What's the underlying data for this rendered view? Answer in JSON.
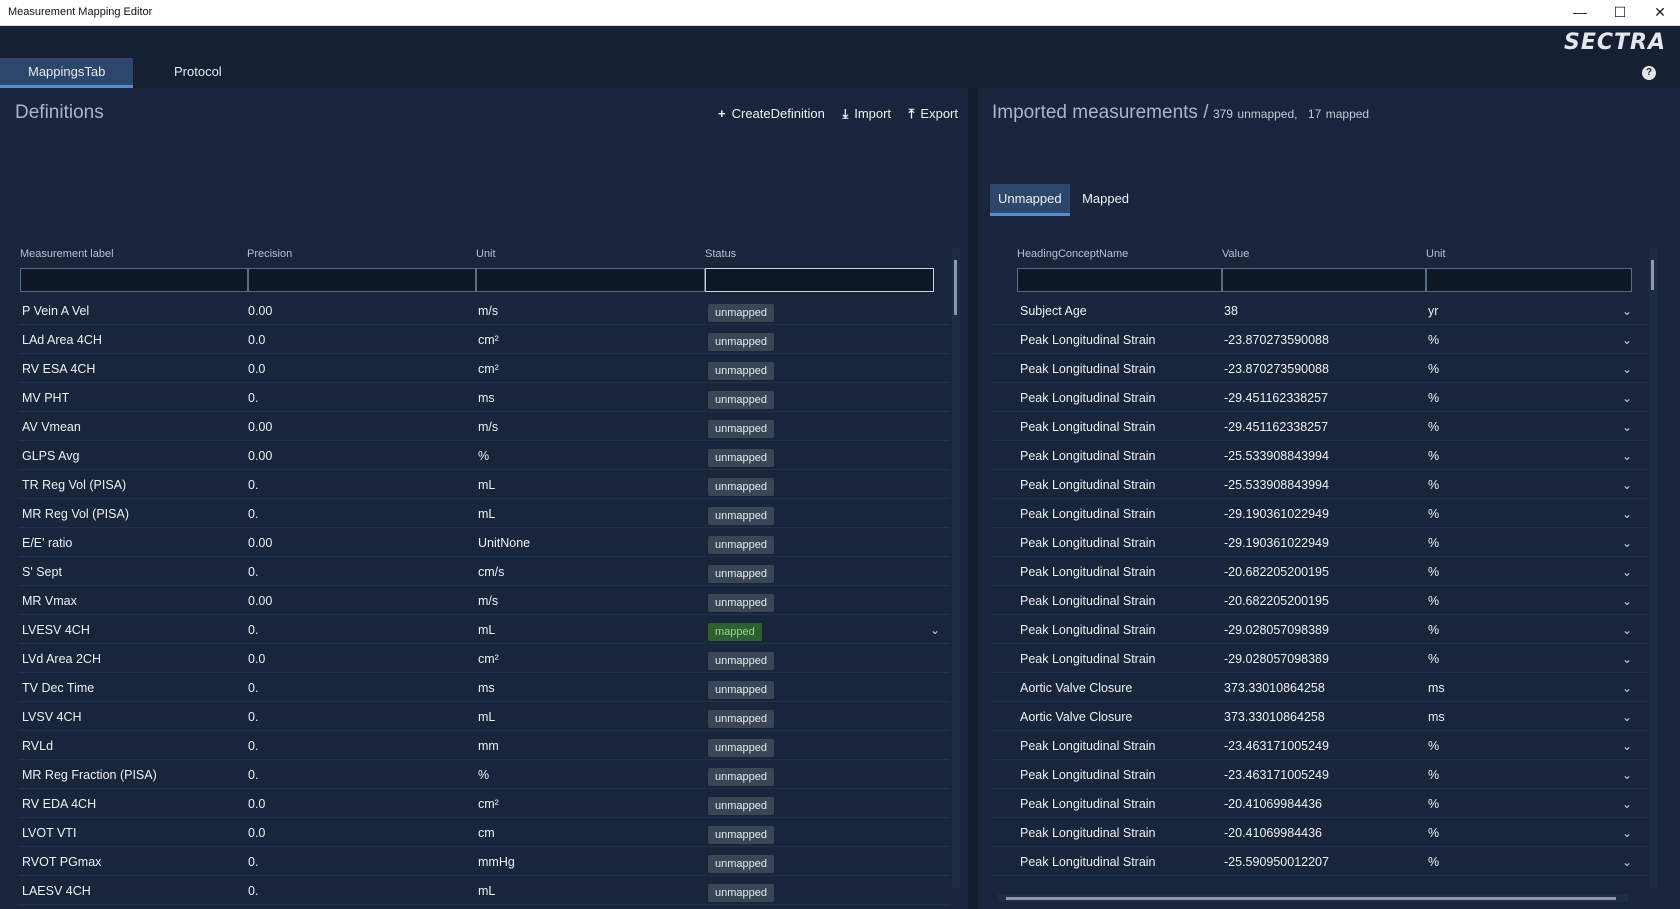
{
  "window": {
    "title": "Measurement Mapping Editor",
    "minimize": "—",
    "maximize": "☐",
    "close": "✕"
  },
  "brand": {
    "logo": "SECTRA",
    "help": "?"
  },
  "tabs": [
    {
      "label": "MappingsTab"
    },
    {
      "label": "Protocol"
    }
  ],
  "definitions": {
    "title": "Definitions",
    "actions": {
      "create": "CreateDefinition",
      "import": "Import",
      "export": "Export"
    },
    "columns": {
      "label": "Measurement label",
      "precision": "Precision",
      "unit": "Unit",
      "status": "Status"
    },
    "rows": [
      {
        "label": "P Vein A Vel",
        "precision": "0.00",
        "unit": "m/s",
        "status": "unmapped"
      },
      {
        "label": "LAd Area 4CH",
        "precision": "0.0",
        "unit": "cm²",
        "status": "unmapped"
      },
      {
        "label": "RV ESA 4CH",
        "precision": "0.0",
        "unit": "cm²",
        "status": "unmapped"
      },
      {
        "label": "MV PHT",
        "precision": "0.",
        "unit": "ms",
        "status": "unmapped"
      },
      {
        "label": "AV Vmean",
        "precision": "0.00",
        "unit": "m/s",
        "status": "unmapped"
      },
      {
        "label": "GLPS Avg",
        "precision": "0.00",
        "unit": "%",
        "status": "unmapped"
      },
      {
        "label": "TR Reg Vol (PISA)",
        "precision": "0.",
        "unit": "mL",
        "status": "unmapped"
      },
      {
        "label": "MR Reg Vol (PISA)",
        "precision": "0.",
        "unit": "mL",
        "status": "unmapped"
      },
      {
        "label": "E/E' ratio",
        "precision": "0.00",
        "unit": "UnitNone",
        "status": "unmapped"
      },
      {
        "label": "S' Sept",
        "precision": "0.",
        "unit": "cm/s",
        "status": "unmapped"
      },
      {
        "label": "MR Vmax",
        "precision": "0.00",
        "unit": "m/s",
        "status": "unmapped"
      },
      {
        "label": "LVESV 4CH",
        "precision": "0.",
        "unit": "mL",
        "status": "mapped"
      },
      {
        "label": "LVd Area 2CH",
        "precision": "0.0",
        "unit": "cm²",
        "status": "unmapped"
      },
      {
        "label": "TV Dec Time",
        "precision": "0.",
        "unit": "ms",
        "status": "unmapped"
      },
      {
        "label": "LVSV 4CH",
        "precision": "0.",
        "unit": "mL",
        "status": "unmapped"
      },
      {
        "label": "RVLd",
        "precision": "0.",
        "unit": "mm",
        "status": "unmapped"
      },
      {
        "label": "MR Reg Fraction (PISA)",
        "precision": "0.",
        "unit": "%",
        "status": "unmapped"
      },
      {
        "label": "RV EDA 4CH",
        "precision": "0.0",
        "unit": "cm²",
        "status": "unmapped"
      },
      {
        "label": "LVOT VTI",
        "precision": "0.0",
        "unit": "cm",
        "status": "unmapped"
      },
      {
        "label": "RVOT PGmax",
        "precision": "0.",
        "unit": "mmHg",
        "status": "unmapped"
      },
      {
        "label": "LAESV 4CH",
        "precision": "0.",
        "unit": "mL",
        "status": "unmapped"
      }
    ]
  },
  "imported": {
    "title": "Imported measurements /",
    "unmapped_count": "379",
    "unmapped_word": "unmapped,",
    "mapped_count": "17",
    "mapped_word": "mapped",
    "subtabs": [
      {
        "label": "Unmapped"
      },
      {
        "label": "Mapped"
      }
    ],
    "columns": {
      "concept": "HeadingConceptName",
      "value": "Value",
      "unit": "Unit"
    },
    "rows": [
      {
        "concept": "Subject Age",
        "value": "38",
        "unit": "yr"
      },
      {
        "concept": "Peak Longitudinal Strain",
        "value": "-23.870273590088",
        "unit": "%"
      },
      {
        "concept": "Peak Longitudinal Strain",
        "value": "-23.870273590088",
        "unit": "%"
      },
      {
        "concept": "Peak Longitudinal Strain",
        "value": "-29.451162338257",
        "unit": "%"
      },
      {
        "concept": "Peak Longitudinal Strain",
        "value": "-29.451162338257",
        "unit": "%"
      },
      {
        "concept": "Peak Longitudinal Strain",
        "value": "-25.533908843994",
        "unit": "%"
      },
      {
        "concept": "Peak Longitudinal Strain",
        "value": "-25.533908843994",
        "unit": "%"
      },
      {
        "concept": "Peak Longitudinal Strain",
        "value": "-29.190361022949",
        "unit": "%"
      },
      {
        "concept": "Peak Longitudinal Strain",
        "value": "-29.190361022949",
        "unit": "%"
      },
      {
        "concept": "Peak Longitudinal Strain",
        "value": "-20.682205200195",
        "unit": "%"
      },
      {
        "concept": "Peak Longitudinal Strain",
        "value": "-20.682205200195",
        "unit": "%"
      },
      {
        "concept": "Peak Longitudinal Strain",
        "value": "-29.028057098389",
        "unit": "%"
      },
      {
        "concept": "Peak Longitudinal Strain",
        "value": "-29.028057098389",
        "unit": "%"
      },
      {
        "concept": "Aortic Valve Closure",
        "value": "373.33010864258",
        "unit": "ms"
      },
      {
        "concept": "Aortic Valve Closure",
        "value": "373.33010864258",
        "unit": "ms"
      },
      {
        "concept": "Peak Longitudinal Strain",
        "value": "-23.463171005249",
        "unit": "%"
      },
      {
        "concept": "Peak Longitudinal Strain",
        "value": "-23.463171005249",
        "unit": "%"
      },
      {
        "concept": "Peak Longitudinal Strain",
        "value": "-20.41069984436",
        "unit": "%"
      },
      {
        "concept": "Peak Longitudinal Strain",
        "value": "-20.41069984436",
        "unit": "%"
      },
      {
        "concept": "Peak Longitudinal Strain",
        "value": "-25.590950012207",
        "unit": "%"
      }
    ]
  },
  "icons": {
    "plus": "plus-icon",
    "import": "import-icon",
    "export": "export-icon",
    "chevron": "chevron-down-icon"
  },
  "colors": {
    "background": "#18253a",
    "accent": "#4a8fd8",
    "mapped_badge": "#2f5f31",
    "unmapped_badge": "#3a4656"
  }
}
